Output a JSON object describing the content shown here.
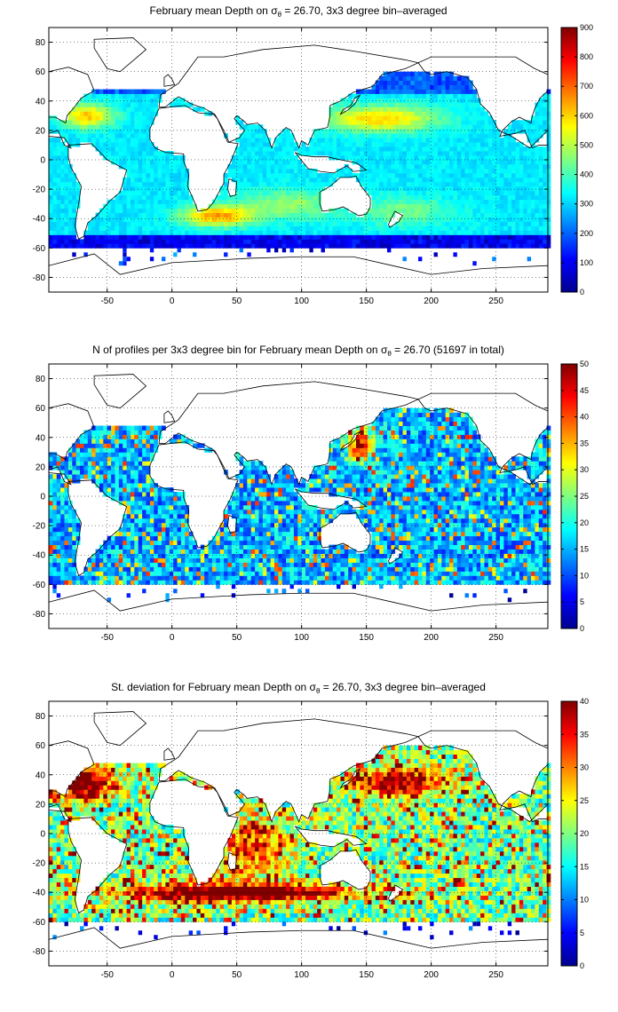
{
  "chart_data": [
    {
      "type": "heatmap",
      "title": "February mean Depth on σθ = 26.70, 3x3 degree bin–averaged",
      "title_parts": {
        "pre": "February mean Depth on ",
        "sym": "σ",
        "sub": "θ",
        "post": " = 26.70, 3x3 degree bin–averaged"
      },
      "xlim": [
        -95,
        290
      ],
      "ylim": [
        -90,
        90
      ],
      "xticks": [
        -50,
        0,
        50,
        100,
        150,
        200,
        250
      ],
      "yticks": [
        80,
        60,
        40,
        20,
        0,
        -20,
        -40,
        -60,
        -80
      ],
      "grid": true,
      "colorbar": {
        "min": 0,
        "max": 900,
        "ticks": [
          0,
          100,
          200,
          300,
          400,
          500,
          600,
          700,
          800,
          900
        ]
      },
      "colormap": "jet",
      "field": "depth",
      "cells_summary": "ocean bins between about -60 and 60 latitude; high values (~600-750) in subtropical North Atlantic, North Pacific and South Atlantic/Indian near 40S"
    },
    {
      "type": "heatmap",
      "title": "N of profiles per 3x3 degree bin for February mean Depth on σθ = 26.70 (51697 in total)",
      "title_parts": {
        "pre": "N of profiles per 3x3 degree bin for February mean Depth on ",
        "sym": "σ",
        "sub": "θ",
        "post": " = 26.70 (51697 in total)"
      },
      "xlim": [
        -95,
        290
      ],
      "ylim": [
        -90,
        90
      ],
      "xticks": [
        -50,
        0,
        50,
        100,
        150,
        200,
        250
      ],
      "yticks": [
        80,
        60,
        40,
        20,
        0,
        -20,
        -40,
        -60,
        -80
      ],
      "grid": true,
      "colorbar": {
        "min": 0,
        "max": 50,
        "ticks": [
          0,
          5,
          10,
          15,
          20,
          25,
          30,
          35,
          40,
          45,
          50
        ]
      },
      "colormap": "jet",
      "field": "count",
      "total": 51697
    },
    {
      "type": "heatmap",
      "title": "St. deviation for February mean Depth on σθ = 26.70, 3x3 degree bin–averaged",
      "title_parts": {
        "pre": "St. deviation for February mean Depth on ",
        "sym": "σ",
        "sub": "θ",
        "post": " = 26.70, 3x3 degree bin–averaged"
      },
      "xlim": [
        -95,
        290
      ],
      "ylim": [
        -90,
        90
      ],
      "xticks": [
        -50,
        0,
        50,
        100,
        150,
        200,
        250
      ],
      "yticks": [
        80,
        60,
        40,
        20,
        0,
        -20,
        -40,
        -60,
        -80
      ],
      "grid": true,
      "colorbar": {
        "min": 0,
        "max": 40,
        "ticks": [
          0,
          5,
          10,
          15,
          20,
          25,
          30,
          35,
          40
        ]
      },
      "colormap": "jet",
      "field": "stdev"
    }
  ]
}
